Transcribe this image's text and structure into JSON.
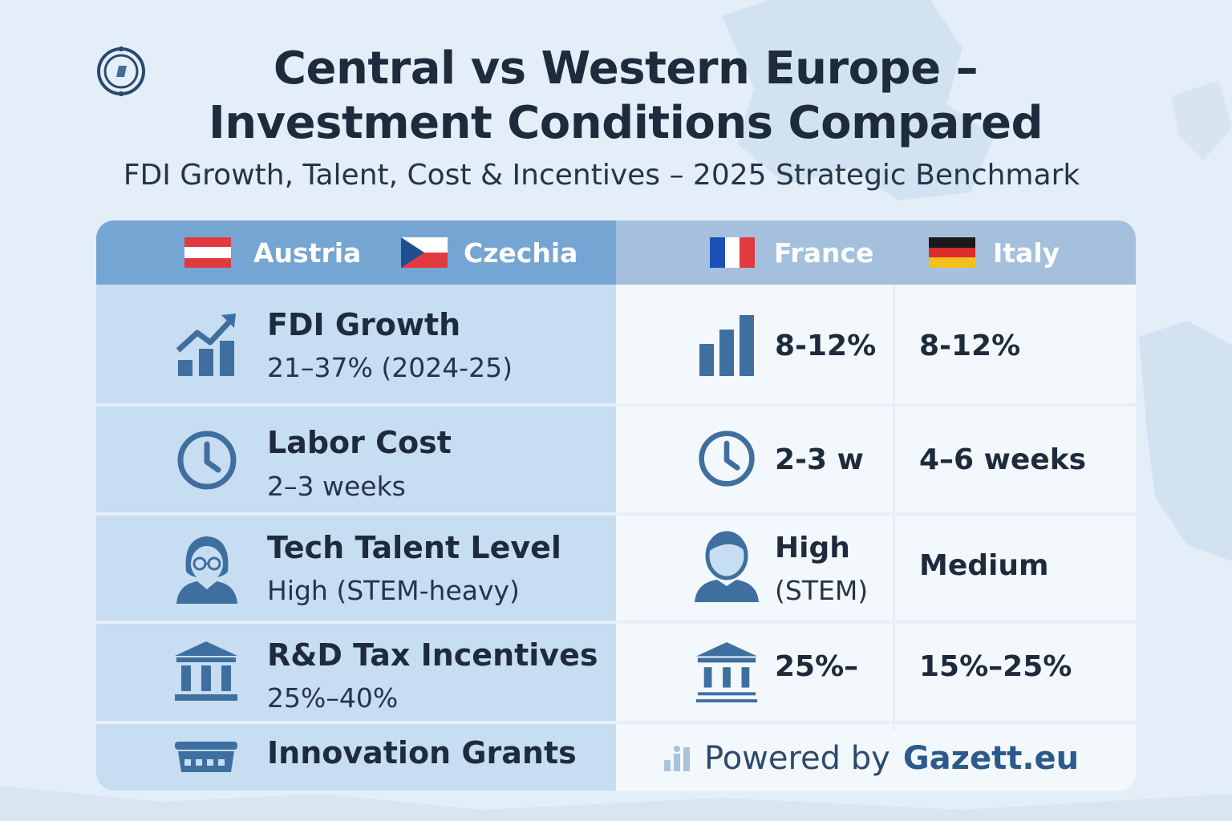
{
  "header": {
    "title": "Central vs Western Europe – Investment Conditions Compared",
    "title_icon": "compass-icon",
    "subtitle": "FDI Growth, Talent, Cost & Incentives – 2025 Strategic Benchmark"
  },
  "countries": [
    {
      "name": "Austria",
      "flag": "austria-flag"
    },
    {
      "name": "Czechia",
      "flag": "czechia-flag"
    },
    {
      "name": "France",
      "flag": "france-flag"
    },
    {
      "name": "Italy",
      "flag": "italy-flag"
    }
  ],
  "rows": [
    {
      "metric": "FDI Growth",
      "central_value": "21–37% (2024-25)",
      "icon": "growth-chart-icon",
      "right_icon": "bar-chart-icon",
      "france": "8-12%",
      "italy": "8-12%"
    },
    {
      "metric": "Labor Cost",
      "central_value": "2–3 weeks",
      "icon": "clock-icon",
      "right_icon": "clock-icon",
      "france": "2-3 w",
      "italy": "4–6 weeks"
    },
    {
      "metric": "Tech Talent Level",
      "central_value": "High (STEM-heavy)",
      "icon": "person-glasses-icon",
      "right_icon": "person-icon",
      "france": "High",
      "france_sub": "(STEM)",
      "italy": "Medium"
    },
    {
      "metric": "R&D Tax Incentives",
      "central_value": "25%–40%",
      "icon": "bank-icon",
      "right_icon": "bank-icon",
      "france": "25%–",
      "italy": "15%–25%"
    },
    {
      "metric": "Innovation Grants",
      "icon": "grant-box-icon"
    }
  ],
  "footer": {
    "powered_text": "Powered by",
    "brand": "Gazett.eu",
    "icon": "small-bars-icon"
  },
  "colors": {
    "header_left": "#75a5d2",
    "header_right": "#a4c0dc",
    "left_panel": "#c6ddf2",
    "icon_blue": "#3f6f9f",
    "text_dark": "#1e2b3c"
  }
}
